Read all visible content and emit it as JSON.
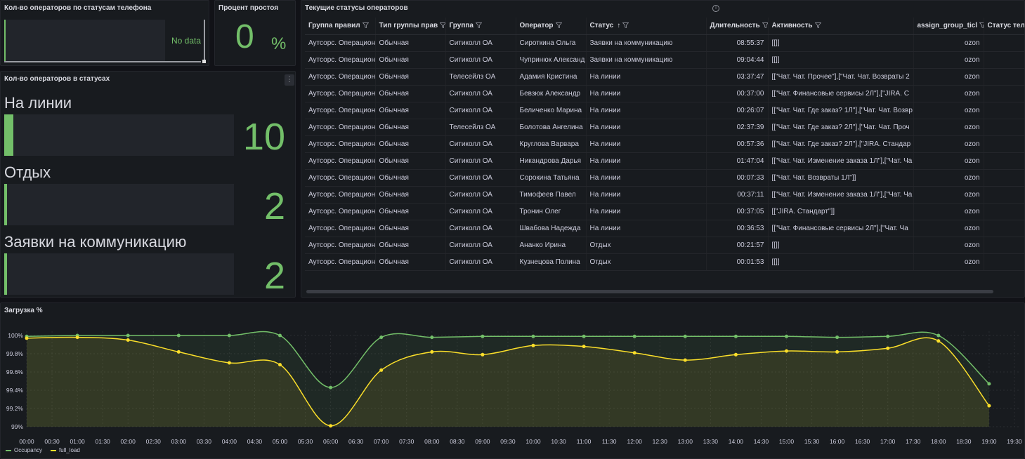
{
  "phone_status_panel": {
    "title": "Кол-во операторов по статусам телефона",
    "message": "No data"
  },
  "idle_panel": {
    "title": "Процент простоя",
    "value": "0",
    "unit": "%"
  },
  "status_count_panel": {
    "title": "Кол-во операторов в статусах",
    "items": [
      {
        "label": "На линии",
        "value": "10",
        "fraction": 0.04
      },
      {
        "label": "Отдых",
        "value": "2",
        "fraction": 0.008
      },
      {
        "label": "Заявки на коммуникацию",
        "value": "2",
        "fraction": 0.008
      }
    ],
    "colors": {
      "accent": "#73bf69"
    }
  },
  "table_panel": {
    "title": "Текущие статусы операторов",
    "info_icon": "i",
    "columns": [
      "Группа правил",
      "Тип группы прав",
      "Группа",
      "Оператор",
      "Статус",
      "Длительность",
      "Активность",
      "assign_group_ticl",
      "Статус теле"
    ],
    "sort_column_index": 4,
    "sort_icon": "↑",
    "rows": [
      [
        "Аутсорс. Операцион",
        "Обычная",
        "Ситиколл ОА",
        "Сироткина Ольга",
        "Заявки на коммуникацию",
        "08:55:37",
        "[[]]",
        "ozon",
        ""
      ],
      [
        "Аутсорс. Операцион",
        "Обычная",
        "Ситиколл ОА",
        "Чупринюк Александ",
        "Заявки на коммуникацию",
        "09:04:44",
        "[[]]",
        "ozon",
        ""
      ],
      [
        "Аутсорс. Операцион",
        "Обычная",
        "Телесейлз ОА",
        "Адамия Кристина",
        "На линии",
        "03:37:47",
        "[[\"Чат. Чат. Прочее\"],[\"Чат. Чат. Возвраты 2",
        "ozon",
        ""
      ],
      [
        "Аутсорс. Операцион",
        "Обычная",
        "Ситиколл ОА",
        "Бевзюк Александр",
        "На линии",
        "00:37:00",
        "[[\"Чат. Финансовые сервисы 2Л\"],[\"JIRA. С",
        "ozon",
        ""
      ],
      [
        "Аутсорс. Операцион",
        "Обычная",
        "Ситиколл ОА",
        "Беличенко Марина",
        "На линии",
        "00:26:07",
        "[[\"Чат. Чат. Где заказ? 1Л\"],[\"Чат. Чат. Возвр",
        "ozon",
        ""
      ],
      [
        "Аутсорс. Операцион",
        "Обычная",
        "Телесейлз ОА",
        "Болотова Ангелина",
        "На линии",
        "02:37:39",
        "[[\"Чат. Чат. Где заказ? 2Л\"],[\"Чат. Чат. Проч",
        "ozon",
        ""
      ],
      [
        "Аутсорс. Операцион",
        "Обычная",
        "Ситиколл ОА",
        "Круглова Варвара",
        "На линии",
        "00:57:36",
        "[[\"Чат. Чат. Где заказ? 2Л\"],[\"JIRA. Стандар",
        "ozon",
        ""
      ],
      [
        "Аутсорс. Операцион",
        "Обычная",
        "Ситиколл ОА",
        "Никандрова Дарья",
        "На линии",
        "01:47:04",
        "[[\"Чат. Чат. Изменение заказа 1Л\"],[\"Чат. Ча",
        "ozon",
        ""
      ],
      [
        "Аутсорс. Операцион",
        "Обычная",
        "Ситиколл ОА",
        "Сорокина Татьяна",
        "На линии",
        "00:07:33",
        "[[\"Чат. Чат. Возвраты 1Л\"]]",
        "ozon",
        ""
      ],
      [
        "Аутсорс. Операцион",
        "Обычная",
        "Ситиколл ОА",
        "Тимофеев Павел",
        "На линии",
        "00:37:11",
        "[[\"Чат. Чат. Изменение заказа 1Л\"],[\"Чат. Ча",
        "ozon",
        ""
      ],
      [
        "Аутсорс. Операцион",
        "Обычная",
        "Ситиколл ОА",
        "Тронин Олег",
        "На линии",
        "00:37:05",
        "[[\"JIRA. Стандарт\"]]",
        "ozon",
        ""
      ],
      [
        "Аутсорс. Операцион",
        "Обычная",
        "Ситиколл ОА",
        "Швабова Надежда",
        "На линии",
        "00:36:53",
        "[[\"Чат. Финансовые сервисы 2Л\"],[\"Чат. Ча",
        "ozon",
        ""
      ],
      [
        "Аутсорс. Операцион",
        "Обычная",
        "Ситиколл ОА",
        "Ананко Ирина",
        "Отдых",
        "00:21:57",
        "[[]]",
        "ozon",
        ""
      ],
      [
        "Аутсорс. Операцион",
        "Обычная",
        "Ситиколл ОА",
        "Кузнецова Полина",
        "Отдых",
        "00:01:53",
        "[[]]",
        "ozon",
        ""
      ]
    ]
  },
  "chart_panel": {
    "title": "Загрузка %"
  },
  "chart_data": {
    "type": "area",
    "title": "Загрузка %",
    "x": [
      "00:00",
      "00:30",
      "01:00",
      "01:30",
      "02:00",
      "02:30",
      "03:00",
      "03:30",
      "04:00",
      "04:30",
      "05:00",
      "05:30",
      "06:00",
      "06:30",
      "07:00",
      "07:30",
      "08:00",
      "08:30",
      "09:00",
      "09:30",
      "10:00",
      "10:30",
      "11:00",
      "11:30",
      "12:00",
      "12:30",
      "13:00",
      "13:30",
      "14:00",
      "14:30",
      "15:00",
      "15:30",
      "16:00",
      "16:30",
      "17:00",
      "17:30",
      "18:00",
      "18:30",
      "19:00",
      "19:30"
    ],
    "series": [
      {
        "name": "Occupancy",
        "color": "#73bf69",
        "points": [
          [
            "00:00",
            99.99
          ],
          [
            "01:00",
            100.0
          ],
          [
            "02:00",
            100.0
          ],
          [
            "03:00",
            100.0
          ],
          [
            "04:00",
            100.0
          ],
          [
            "05:00",
            100.0
          ],
          [
            "06:00",
            99.43
          ],
          [
            "07:00",
            99.98
          ],
          [
            "08:00",
            99.98
          ],
          [
            "09:00",
            99.99
          ],
          [
            "10:00",
            99.99
          ],
          [
            "11:00",
            99.99
          ],
          [
            "12:00",
            99.99
          ],
          [
            "13:00",
            99.99
          ],
          [
            "14:00",
            99.99
          ],
          [
            "15:00",
            99.99
          ],
          [
            "16:00",
            99.98
          ],
          [
            "17:00",
            99.99
          ],
          [
            "18:00",
            100.0
          ],
          [
            "19:00",
            99.47
          ]
        ]
      },
      {
        "name": "full_load",
        "color": "#fade2a",
        "points": [
          [
            "00:00",
            99.97
          ],
          [
            "01:00",
            99.98
          ],
          [
            "02:00",
            99.95
          ],
          [
            "03:00",
            99.82
          ],
          [
            "04:00",
            99.7
          ],
          [
            "05:00",
            99.68
          ],
          [
            "06:00",
            99.01
          ],
          [
            "07:00",
            99.62
          ],
          [
            "08:00",
            99.82
          ],
          [
            "09:00",
            99.79
          ],
          [
            "10:00",
            99.89
          ],
          [
            "11:00",
            99.88
          ],
          [
            "12:00",
            99.81
          ],
          [
            "13:00",
            99.73
          ],
          [
            "14:00",
            99.79
          ],
          [
            "15:00",
            99.83
          ],
          [
            "16:00",
            99.82
          ],
          [
            "17:00",
            99.86
          ],
          [
            "18:00",
            99.94
          ],
          [
            "19:00",
            99.23
          ]
        ]
      }
    ],
    "y_ticks": [
      "99%",
      "99.2%",
      "99.4%",
      "99.6%",
      "99.8%",
      "100%"
    ],
    "ylim": [
      99.0,
      100.0
    ],
    "grid": true,
    "legend_position": "bottom-left"
  }
}
